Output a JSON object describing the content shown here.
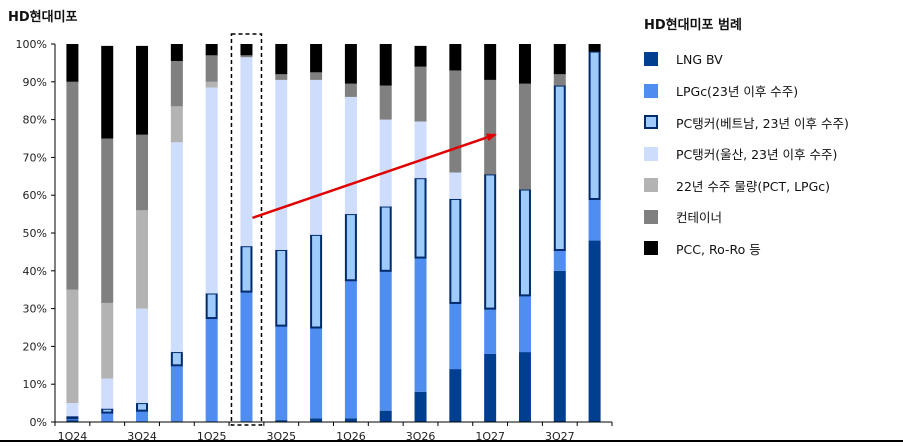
{
  "chart_title": "HD현대미포",
  "legend_title": "HD현대미포 범례",
  "chart_data": {
    "type": "bar",
    "stacked": true,
    "ylim": [
      0,
      100
    ],
    "y_ticks": [
      "0%",
      "10%",
      "20%",
      "30%",
      "40%",
      "50%",
      "60%",
      "70%",
      "80%",
      "90%",
      "100%"
    ],
    "categories": [
      "1Q24",
      "2Q24",
      "3Q24",
      "4Q24",
      "1Q25",
      "2Q25",
      "3Q25",
      "4Q25",
      "1Q26",
      "2Q26",
      "3Q26",
      "4Q26",
      "1Q27",
      "2Q27",
      "3Q27",
      "4Q27"
    ],
    "x_tick_labels": [
      "1Q24",
      "3Q24",
      "1Q25",
      "3Q25",
      "1Q26",
      "3Q26",
      "1Q27",
      "3Q27"
    ],
    "series": [
      {
        "name": "LNG BV",
        "color": "#003f8f",
        "values": [
          0.5,
          0,
          0,
          0,
          0,
          0,
          0.5,
          1,
          1,
          3,
          8,
          14,
          18,
          18.5,
          40,
          48
        ]
      },
      {
        "name": "LPGc(23년 이후 수주)",
        "color": "#4f8ef0",
        "values": [
          0.5,
          2.5,
          3,
          15,
          27.5,
          34.5,
          25,
          24,
          36.5,
          37,
          35.5,
          17.5,
          12,
          15,
          5.5,
          11
        ]
      },
      {
        "name": "PC탱커(베트남, 23년 이후 수주)",
        "color": "#9fcbfb",
        "outlined": true,
        "values": [
          0.5,
          1,
          2,
          3.5,
          6.5,
          12,
          20,
          24.5,
          17.5,
          17,
          21,
          27.5,
          35.5,
          28,
          43.5,
          39
        ]
      },
      {
        "name": "PC탱커(울산, 23년 이후 수주)",
        "color": "#cfddfd",
        "values": [
          3.5,
          8,
          25,
          55.5,
          54.5,
          50,
          45,
          41,
          31,
          23,
          15,
          7,
          0,
          0,
          0,
          0
        ]
      },
      {
        "name": "22년 수주 물량(PCT, LPGc)",
        "color": "#b3b3b3",
        "values": [
          30,
          20,
          26,
          9.5,
          1.5,
          0,
          0,
          0,
          0,
          0,
          0,
          0,
          0,
          0,
          0,
          0
        ]
      },
      {
        "name": "컨테이너",
        "color": "#808080",
        "values": [
          55,
          43.5,
          20,
          12,
          7,
          0.5,
          1.5,
          2,
          3.5,
          9,
          14.5,
          27,
          25,
          28,
          3,
          0
        ]
      },
      {
        "name": "PCC, Ro-Ro 등",
        "color": "#000000",
        "values": [
          10,
          24.5,
          23.5,
          4.5,
          3,
          3,
          8,
          7.5,
          10.5,
          11,
          5.5,
          7,
          9.5,
          10.5,
          8,
          2
        ]
      }
    ],
    "highlight_category": "2Q25",
    "annotation": {
      "type": "arrow",
      "color": "#e00000",
      "from": {
        "category": "2Q25",
        "value": 54
      },
      "to": {
        "category": "2Q27",
        "value": 76
      }
    }
  }
}
